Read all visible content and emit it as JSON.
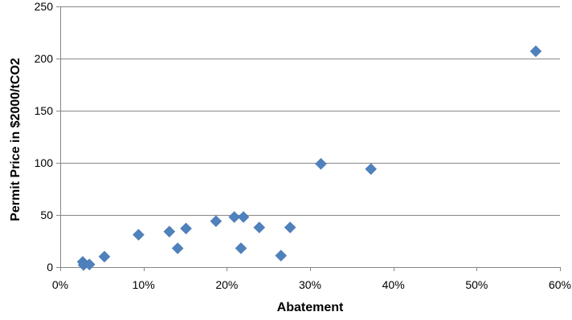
{
  "chart_data": {
    "type": "scatter",
    "title": "",
    "xlabel": "Abatement",
    "ylabel": "Permit Price in $2000/tCO2",
    "xlim": [
      0,
      60
    ],
    "ylim": [
      0,
      250
    ],
    "x_ticks": [
      0,
      10,
      20,
      30,
      40,
      50,
      60
    ],
    "x_tick_labels": [
      "0%",
      "10%",
      "20%",
      "30%",
      "40%",
      "50%",
      "60%"
    ],
    "y_ticks": [
      0,
      50,
      100,
      150,
      200,
      250
    ],
    "y_tick_labels": [
      "0",
      "50",
      "100",
      "150",
      "200",
      "250"
    ],
    "grid": "horizontal",
    "legend": "none",
    "marker": "diamond",
    "marker_color": "#4f81bd",
    "series": [
      {
        "x": [
          2.7,
          2.8,
          3.5,
          5.3,
          9.4,
          13.1,
          14.1,
          15.1,
          18.7,
          20.9,
          22.0,
          21.7,
          23.9,
          26.5,
          27.6,
          31.3,
          37.3,
          57.1
        ],
        "y": [
          5,
          2,
          2.5,
          10,
          31,
          34,
          18,
          37,
          44,
          48,
          48,
          18,
          38,
          11,
          38,
          99,
          94,
          207
        ]
      }
    ]
  }
}
